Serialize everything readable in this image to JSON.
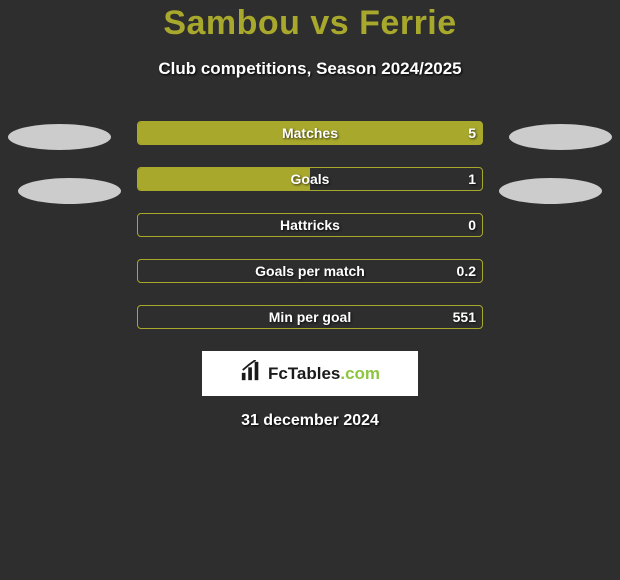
{
  "header": {
    "title": "Sambou vs Ferrie",
    "subtitle": "Club competitions, Season 2024/2025"
  },
  "ellipses": {
    "color": "#cccccc"
  },
  "chart": {
    "type": "bar",
    "bar_border_color": "#a8a82d",
    "bar_fill_color": "#a8a82d",
    "text_color": "#ffffff",
    "text_shadow": "1px 1px 2px rgba(0,0,0,0.7)",
    "label_fontsize": 14,
    "background_color": "#2e2e2e",
    "bars": [
      {
        "label": "Matches",
        "value": "5",
        "fill_pct": 100
      },
      {
        "label": "Goals",
        "value": "1",
        "fill_pct": 50
      },
      {
        "label": "Hattricks",
        "value": "0",
        "fill_pct": 0
      },
      {
        "label": "Goals per match",
        "value": "0.2",
        "fill_pct": 0
      },
      {
        "label": "Min per goal",
        "value": "551",
        "fill_pct": 0
      }
    ]
  },
  "brand": {
    "icon": "bar-chart-icon",
    "text_prefix": "FcTables",
    "text_suffix": ".com"
  },
  "footer": {
    "date": "31 december 2024"
  }
}
